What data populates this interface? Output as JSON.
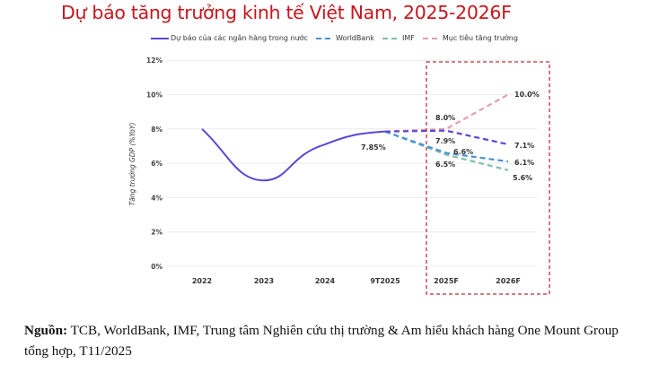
{
  "title": "Dự báo tăng trưởng kinh tế Việt Nam, 2025-2026F",
  "legend": [
    {
      "label": "Dự báo của các ngân hàng trong nước",
      "color": "#5b45d8",
      "style": "solid"
    },
    {
      "label": "WorldBank",
      "color": "#4a90d9",
      "style": "dashed"
    },
    {
      "label": "IMF",
      "color": "#7dbfa8",
      "style": "dashed"
    },
    {
      "label": "Mục tiêu tăng trưởng",
      "color": "#e0a0b0",
      "style": "dashed"
    }
  ],
  "source": {
    "label": "Nguồn:",
    "text": " TCB, WorldBank, IMF, Trung tâm Nghiên cứu thị trường & Am hiểu khách hàng One Mount Group tổng hợp, T11/2025"
  },
  "chart_data": {
    "type": "line",
    "title": "Dự báo tăng trưởng kinh tế Việt Nam, 2025-2026F",
    "xlabel": "",
    "ylabel": "Tăng trưởng GDP (%YoY)",
    "categories": [
      "2022",
      "2023",
      "2024",
      "9T2025",
      "2025F",
      "2026F"
    ],
    "ylim": [
      0,
      12
    ],
    "yticks": [
      "0%",
      "2%",
      "4%",
      "6%",
      "8%",
      "10%",
      "12%"
    ],
    "grid": true,
    "legend_position": "top",
    "series": [
      {
        "name": "Dự báo của các ngân hàng trong nước",
        "color": "#5b45d8",
        "style": "solid+dashed-forecast",
        "values": [
          8.0,
          5.0,
          7.1,
          7.85,
          7.9,
          7.1
        ]
      },
      {
        "name": "WorldBank",
        "color": "#4a90d9",
        "style": "dashed",
        "values": [
          null,
          null,
          null,
          7.85,
          6.6,
          6.1
        ]
      },
      {
        "name": "IMF",
        "color": "#7dbfa8",
        "style": "dashed",
        "values": [
          null,
          null,
          null,
          7.85,
          6.5,
          5.6
        ]
      },
      {
        "name": "Mục tiêu tăng trưởng",
        "color": "#e0a0b0",
        "style": "dashed",
        "values": [
          null,
          null,
          null,
          7.85,
          8.0,
          10.0
        ]
      }
    ],
    "annotations": [
      {
        "text": "7.85%",
        "x": "9T2025"
      },
      {
        "text": "8.0%",
        "x": "2025F"
      },
      {
        "text": "7.9%",
        "x": "2025F"
      },
      {
        "text": "6.6%",
        "x": "2025F"
      },
      {
        "text": "6.5%",
        "x": "2025F"
      },
      {
        "text": "10.0%",
        "x": "2026F"
      },
      {
        "text": "7.1%",
        "x": "2026F"
      },
      {
        "text": "6.1%",
        "x": "2026F"
      },
      {
        "text": "5.6%",
        "x": "2026F"
      }
    ],
    "highlight_box": {
      "from": "2025F",
      "to": "2026F",
      "color": "#b8323f",
      "style": "dashed"
    }
  }
}
